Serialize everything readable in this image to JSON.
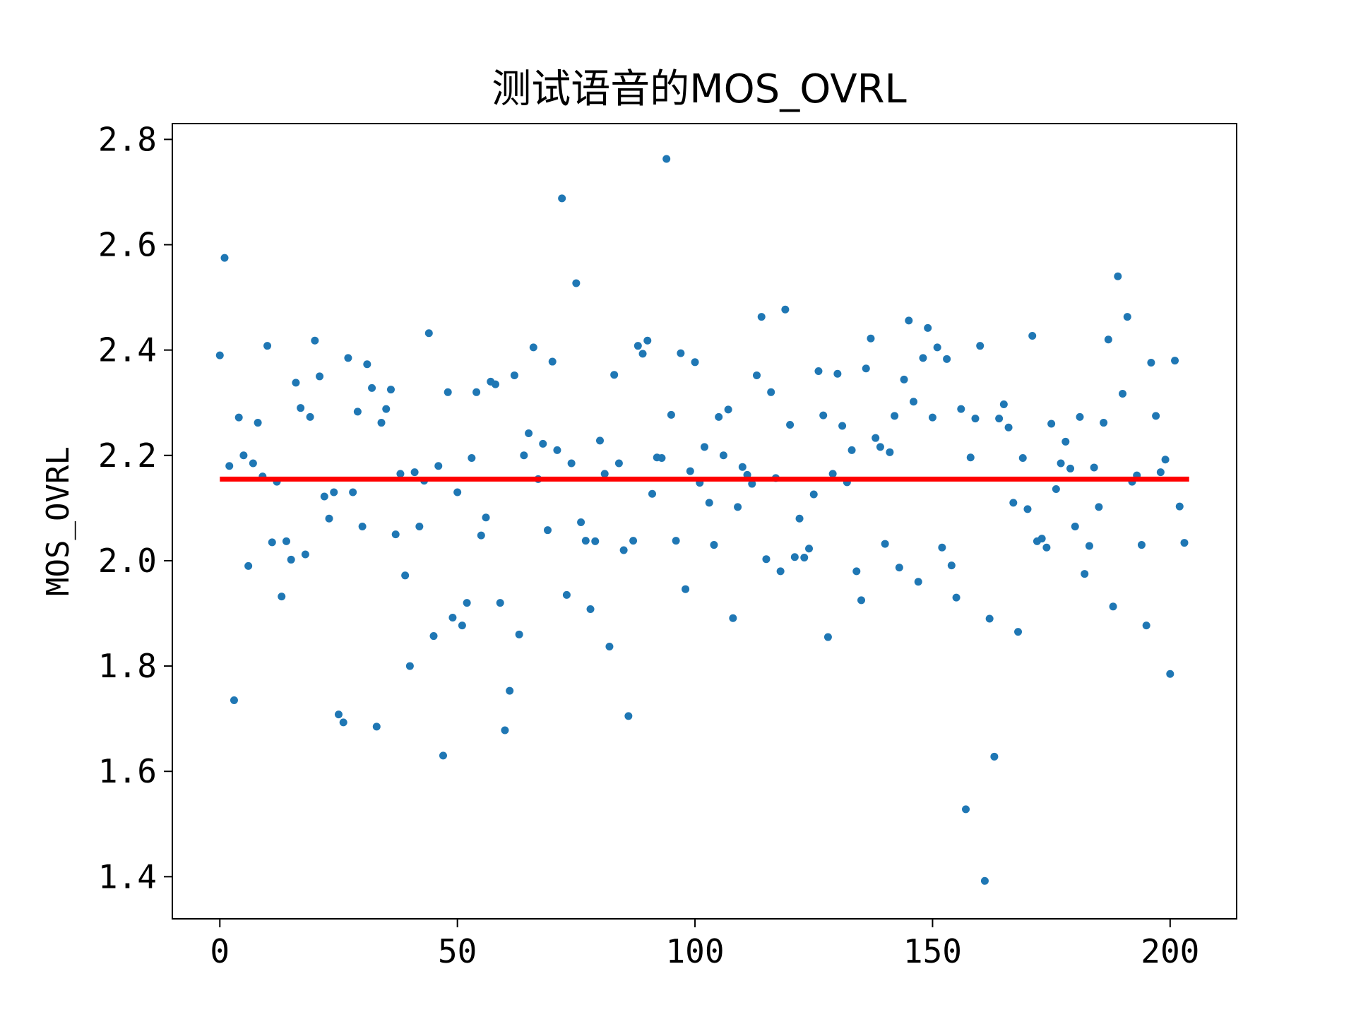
{
  "chart_data": {
    "type": "scatter",
    "title": "测试语音的MOS_OVRL",
    "xlabel": "",
    "ylabel": "MOS_OVRL",
    "xlim": [
      -10,
      214
    ],
    "ylim": [
      1.32,
      2.83
    ],
    "xticks": [
      0,
      50,
      100,
      150,
      200
    ],
    "xtick_labels": [
      "0",
      "50",
      "100",
      "150",
      "200"
    ],
    "yticks": [
      1.4,
      1.6,
      1.8,
      2.0,
      2.2,
      2.4,
      2.6,
      2.8
    ],
    "ytick_labels": [
      "1.4",
      "1.6",
      "1.8",
      "2.0",
      "2.2",
      "2.4",
      "2.6",
      "2.8"
    ],
    "grid": false,
    "point_color": "#1f77b4",
    "mean_line": {
      "y": 2.155,
      "x_start": 0,
      "x_end": 204,
      "color": "#ff0000"
    },
    "points": [
      [
        0,
        2.39
      ],
      [
        1,
        2.575
      ],
      [
        2,
        2.18
      ],
      [
        3,
        1.735
      ],
      [
        4,
        2.272
      ],
      [
        5,
        2.2
      ],
      [
        6,
        1.99
      ],
      [
        7,
        2.185
      ],
      [
        8,
        2.262
      ],
      [
        9,
        2.16
      ],
      [
        10,
        2.408
      ],
      [
        11,
        2.035
      ],
      [
        12,
        2.15
      ],
      [
        13,
        1.932
      ],
      [
        14,
        2.037
      ],
      [
        15,
        2.002
      ],
      [
        16,
        2.338
      ],
      [
        17,
        2.29
      ],
      [
        18,
        2.012
      ],
      [
        19,
        2.273
      ],
      [
        20,
        2.418
      ],
      [
        21,
        2.35
      ],
      [
        22,
        2.122
      ],
      [
        23,
        2.08
      ],
      [
        24,
        2.13
      ],
      [
        25,
        1.708
      ],
      [
        26,
        1.693
      ],
      [
        27,
        2.385
      ],
      [
        28,
        2.13
      ],
      [
        29,
        2.283
      ],
      [
        30,
        2.065
      ],
      [
        31,
        2.373
      ],
      [
        32,
        2.328
      ],
      [
        33,
        1.685
      ],
      [
        34,
        2.262
      ],
      [
        35,
        2.288
      ],
      [
        36,
        2.325
      ],
      [
        37,
        2.05
      ],
      [
        38,
        2.165
      ],
      [
        39,
        1.972
      ],
      [
        40,
        1.8
      ],
      [
        41,
        2.168
      ],
      [
        42,
        2.065
      ],
      [
        43,
        2.152
      ],
      [
        44,
        2.432
      ],
      [
        45,
        1.857
      ],
      [
        46,
        2.18
      ],
      [
        47,
        1.63
      ],
      [
        48,
        2.32
      ],
      [
        49,
        1.892
      ],
      [
        50,
        2.13
      ],
      [
        51,
        1.877
      ],
      [
        52,
        1.92
      ],
      [
        53,
        2.195
      ],
      [
        54,
        2.32
      ],
      [
        55,
        2.048
      ],
      [
        56,
        2.082
      ],
      [
        57,
        2.34
      ],
      [
        58,
        2.335
      ],
      [
        59,
        1.92
      ],
      [
        60,
        1.678
      ],
      [
        61,
        1.753
      ],
      [
        62,
        2.352
      ],
      [
        63,
        1.86
      ],
      [
        64,
        2.2
      ],
      [
        65,
        2.242
      ],
      [
        66,
        2.405
      ],
      [
        67,
        2.155
      ],
      [
        68,
        2.222
      ],
      [
        69,
        2.058
      ],
      [
        70,
        2.378
      ],
      [
        71,
        2.21
      ],
      [
        72,
        2.688
      ],
      [
        73,
        1.935
      ],
      [
        74,
        2.185
      ],
      [
        75,
        2.527
      ],
      [
        76,
        2.073
      ],
      [
        77,
        2.038
      ],
      [
        78,
        1.908
      ],
      [
        79,
        2.037
      ],
      [
        80,
        2.228
      ],
      [
        81,
        2.165
      ],
      [
        82,
        1.837
      ],
      [
        83,
        2.353
      ],
      [
        84,
        2.185
      ],
      [
        85,
        2.02
      ],
      [
        86,
        1.705
      ],
      [
        87,
        2.038
      ],
      [
        88,
        2.408
      ],
      [
        89,
        2.393
      ],
      [
        90,
        2.418
      ],
      [
        91,
        2.127
      ],
      [
        92,
        2.196
      ],
      [
        93,
        2.195
      ],
      [
        94,
        2.763
      ],
      [
        95,
        2.277
      ],
      [
        96,
        2.038
      ],
      [
        97,
        2.394
      ],
      [
        98,
        1.946
      ],
      [
        99,
        2.17
      ],
      [
        100,
        2.377
      ],
      [
        101,
        2.148
      ],
      [
        102,
        2.216
      ],
      [
        103,
        2.11
      ],
      [
        104,
        2.03
      ],
      [
        105,
        2.273
      ],
      [
        106,
        2.2
      ],
      [
        107,
        2.287
      ],
      [
        108,
        1.891
      ],
      [
        109,
        2.102
      ],
      [
        110,
        2.178
      ],
      [
        111,
        2.163
      ],
      [
        112,
        2.146
      ],
      [
        113,
        2.352
      ],
      [
        114,
        2.463
      ],
      [
        115,
        2.003
      ],
      [
        116,
        2.32
      ],
      [
        117,
        2.157
      ],
      [
        118,
        1.98
      ],
      [
        119,
        2.477
      ],
      [
        120,
        2.258
      ],
      [
        121,
        2.007
      ],
      [
        122,
        2.08
      ],
      [
        123,
        2.006
      ],
      [
        124,
        2.023
      ],
      [
        125,
        2.126
      ],
      [
        126,
        2.36
      ],
      [
        127,
        2.276
      ],
      [
        128,
        1.855
      ],
      [
        129,
        2.165
      ],
      [
        130,
        2.355
      ],
      [
        131,
        2.256
      ],
      [
        132,
        2.149
      ],
      [
        133,
        2.21
      ],
      [
        134,
        1.98
      ],
      [
        135,
        1.925
      ],
      [
        136,
        2.365
      ],
      [
        137,
        2.422
      ],
      [
        138,
        2.233
      ],
      [
        139,
        2.216
      ],
      [
        140,
        2.032
      ],
      [
        141,
        2.206
      ],
      [
        142,
        2.275
      ],
      [
        143,
        1.987
      ],
      [
        144,
        2.344
      ],
      [
        145,
        2.456
      ],
      [
        146,
        2.302
      ],
      [
        147,
        1.96
      ],
      [
        148,
        2.385
      ],
      [
        149,
        2.442
      ],
      [
        150,
        2.272
      ],
      [
        151,
        2.405
      ],
      [
        152,
        2.025
      ],
      [
        153,
        2.383
      ],
      [
        154,
        1.991
      ],
      [
        155,
        1.93
      ],
      [
        156,
        2.288
      ],
      [
        157,
        1.528
      ],
      [
        158,
        2.196
      ],
      [
        159,
        2.27
      ],
      [
        160,
        2.408
      ],
      [
        161,
        1.392
      ],
      [
        162,
        1.89
      ],
      [
        163,
        1.628
      ],
      [
        164,
        2.27
      ],
      [
        165,
        2.297
      ],
      [
        166,
        2.253
      ],
      [
        167,
        2.11
      ],
      [
        168,
        1.865
      ],
      [
        169,
        2.195
      ],
      [
        170,
        2.098
      ],
      [
        171,
        2.427
      ],
      [
        172,
        2.037
      ],
      [
        173,
        2.042
      ],
      [
        174,
        2.025
      ],
      [
        175,
        2.26
      ],
      [
        176,
        2.136
      ],
      [
        177,
        2.185
      ],
      [
        178,
        2.226
      ],
      [
        179,
        2.175
      ],
      [
        180,
        2.065
      ],
      [
        181,
        2.273
      ],
      [
        182,
        1.975
      ],
      [
        183,
        2.028
      ],
      [
        184,
        2.177
      ],
      [
        185,
        2.102
      ],
      [
        186,
        2.262
      ],
      [
        187,
        2.42
      ],
      [
        188,
        1.913
      ],
      [
        189,
        2.54
      ],
      [
        190,
        2.317
      ],
      [
        191,
        2.463
      ],
      [
        192,
        2.15
      ],
      [
        193,
        2.162
      ],
      [
        194,
        2.03
      ],
      [
        195,
        1.877
      ],
      [
        196,
        2.376
      ],
      [
        197,
        2.275
      ],
      [
        198,
        2.168
      ],
      [
        199,
        2.192
      ],
      [
        200,
        1.785
      ],
      [
        201,
        2.38
      ],
      [
        202,
        2.103
      ],
      [
        203,
        2.034
      ]
    ]
  }
}
